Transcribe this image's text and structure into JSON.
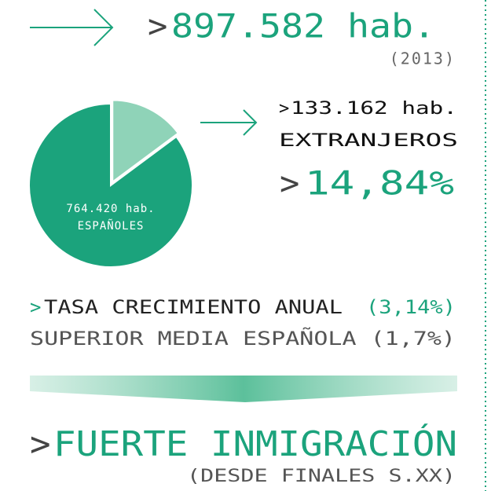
{
  "headline": {
    "mark": ">",
    "text": "897.582 hab.",
    "year": "(2013)"
  },
  "chart_data": {
    "type": "pie",
    "categories": [
      "ESPAÑOLES",
      "EXTRANJEROS"
    ],
    "values": [
      764420,
      133162
    ],
    "value_labels": [
      "764.420 hab.",
      "133.162 hab."
    ],
    "colors": [
      "#1ba37c",
      "#8fd3b8"
    ],
    "label_mark": ">",
    "share": {
      "mark": ">",
      "text": "14,84%"
    }
  },
  "growth": {
    "mark": ">",
    "text": "TASA CRECIMIENTO ANUAL",
    "rate": "(3,14%)",
    "line2": "SUPERIOR MEDIA ESPAÑOLA (1,7%)"
  },
  "conclusion": {
    "mark": ">",
    "text": "FUERTE INMIGRACIÓN",
    "note": "(DESDE FINALES S.XX)"
  }
}
